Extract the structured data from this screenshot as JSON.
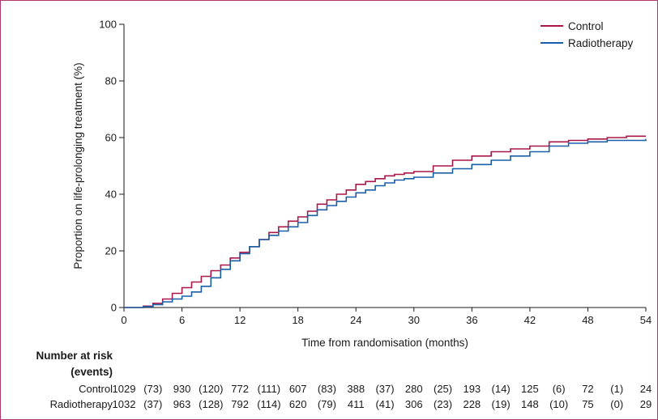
{
  "chart_data": {
    "type": "line",
    "xlabel": "Time from randomisation (months)",
    "ylabel": "Proportion on life-prolonging treatment (%)",
    "xlim": [
      0,
      54
    ],
    "ylim": [
      0,
      100
    ],
    "xticks": [
      0,
      6,
      12,
      18,
      24,
      30,
      36,
      42,
      48,
      54
    ],
    "yticks": [
      0,
      20,
      40,
      60,
      80,
      100
    ],
    "grid": false,
    "legend_position": "top-right",
    "series": [
      {
        "name": "Control",
        "color": "#a8164a",
        "x": [
          0,
          1,
          2,
          3,
          4,
          5,
          6,
          7,
          8,
          9,
          10,
          11,
          12,
          13,
          14,
          15,
          16,
          17,
          18,
          19,
          20,
          21,
          22,
          23,
          24,
          25,
          26,
          27,
          28,
          29,
          30,
          32,
          34,
          36,
          38,
          40,
          42,
          44,
          46,
          48,
          50,
          52,
          54
        ],
        "y": [
          0,
          0,
          0.5,
          1.5,
          3,
          5,
          7,
          9,
          11,
          13,
          15,
          17.5,
          19.5,
          21.5,
          24,
          26.5,
          28.5,
          30.5,
          32,
          34,
          36.5,
          38,
          40,
          41.5,
          43.5,
          44.5,
          45.5,
          46.5,
          47,
          47.5,
          48,
          50,
          52,
          53.5,
          55,
          56,
          57,
          58.5,
          59,
          59.5,
          60,
          60.5,
          60.5
        ]
      },
      {
        "name": "Radiotherapy",
        "color": "#1a5ea8",
        "x": [
          0,
          1,
          2,
          3,
          4,
          5,
          6,
          7,
          8,
          9,
          10,
          11,
          12,
          13,
          14,
          15,
          16,
          17,
          18,
          19,
          20,
          21,
          22,
          23,
          24,
          25,
          26,
          27,
          28,
          29,
          30,
          32,
          34,
          36,
          38,
          40,
          42,
          44,
          46,
          48,
          50,
          52,
          54
        ],
        "y": [
          0,
          0,
          0.3,
          1,
          2,
          3,
          4,
          5.5,
          7.5,
          10.5,
          13.5,
          16.5,
          19,
          21.5,
          24,
          25.5,
          27,
          28.5,
          30,
          32.5,
          34.5,
          36,
          37.5,
          39,
          40.5,
          41.5,
          43,
          44,
          45,
          45.5,
          46,
          47.5,
          49,
          50.5,
          52,
          53.5,
          55,
          57,
          58,
          58.5,
          59,
          59,
          59.5
        ]
      }
    ],
    "risk_table": {
      "title_line1": "Number at risk",
      "title_line2": "(events)",
      "rows": [
        {
          "label": "Control",
          "entries": [
            {
              "n": "1029",
              "e": "(73)"
            },
            {
              "n": "930",
              "e": "(120)"
            },
            {
              "n": "772",
              "e": "(111)"
            },
            {
              "n": "607",
              "e": "(83)"
            },
            {
              "n": "388",
              "e": "(37)"
            },
            {
              "n": "280",
              "e": "(25)"
            },
            {
              "n": "193",
              "e": "(14)"
            },
            {
              "n": "125",
              "e": "(6)"
            },
            {
              "n": "72",
              "e": "(1)"
            },
            {
              "n": "24",
              "e": ""
            }
          ]
        },
        {
          "label": "Radiotherapy",
          "entries": [
            {
              "n": "1032",
              "e": "(37)"
            },
            {
              "n": "963",
              "e": "(128)"
            },
            {
              "n": "792",
              "e": "(114)"
            },
            {
              "n": "620",
              "e": "(79)"
            },
            {
              "n": "411",
              "e": "(41)"
            },
            {
              "n": "306",
              "e": "(23)"
            },
            {
              "n": "228",
              "e": "(19)"
            },
            {
              "n": "148",
              "e": "(10)"
            },
            {
              "n": "75",
              "e": "(0)"
            },
            {
              "n": "29",
              "e": ""
            }
          ]
        }
      ]
    }
  }
}
